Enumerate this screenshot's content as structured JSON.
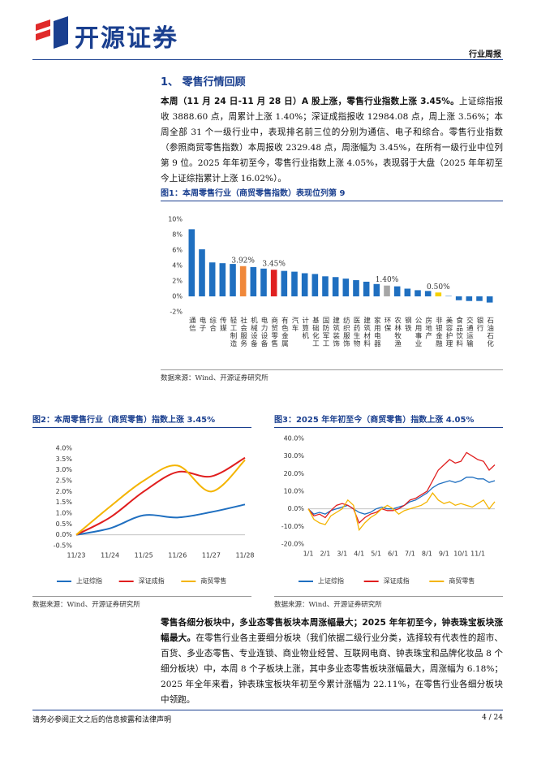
{
  "header": {
    "logo": "开源证券",
    "report_type": "行业周报"
  },
  "section_title": "1、 零售行情回顾",
  "paragraphs": [
    {
      "lead": "本周（11 月 24 日-11 月 28 日）A 股上涨，零售行业指数上涨 3.45%。",
      "text": "上证综指报收 3888.60 点，周累计上涨 1.40%；深证成指报收 12984.08 点，周上涨 3.56%；本周全部 31 个一级行业中，表现排名前三位的分别为通信、电子和综合。零售行业指数（参照商贸零售指数）本周报收 2329.48 点，周涨幅为 3.45%，在所有一级行业中位列第 9 位。2025 年年初至今，零售行业指数上涨 4.05%，表现弱于大盘（2025 年年初至今上证综指累计上涨 16.02%）。"
    },
    {
      "lead": "零售各细分板块中，多业态零售板块本周涨幅最大；2025 年年初至今，钟表珠宝板块涨幅最大。",
      "text": "在零售行业各主要细分板块（我们依据二级行业分类，选择较有代表性的超市、百货、多业态零售、专业连锁、商业物业经营、互联网电商、钟表珠宝和品牌化妆品 8 个细分板块）中，本周 8 个子板块上涨，其中多业态零售板块涨幅最大，周涨幅为 6.18%；2025 年全年来看，钟表珠宝板块年初至今累计涨幅为 22.11%，在零售行业各细分板块中领跑。"
    }
  ],
  "chart_data": [
    {
      "type": "bar",
      "title": "图1：本周零售行业（商贸零售指数）表现位列第 9",
      "source": "数据来源：Wind、开源证券研究所",
      "categories": [
        "通信",
        "电子",
        "综合",
        "传媒",
        "轻工制造",
        "社会服务",
        "机械设备",
        "电力设备",
        "商贸零售",
        "有色金属",
        "汽车",
        "计算机",
        "基础化工",
        "国防军工",
        "建筑装饰",
        "纺织服饰",
        "医药生物",
        "建筑材料",
        "家用电器",
        "环保",
        "农林牧渔",
        "钢铁",
        "公用事业",
        "房地产",
        "非银金融",
        "美容护理",
        "食品饮料",
        "交通运输",
        "银行",
        "石油石化"
      ],
      "values": [
        8.7,
        6.1,
        4.4,
        4.3,
        4.2,
        3.92,
        3.8,
        3.6,
        3.45,
        3.3,
        3.2,
        3.0,
        2.9,
        2.6,
        2.5,
        2.3,
        2.1,
        1.9,
        1.6,
        1.4,
        1.3,
        1.0,
        0.8,
        0.7,
        0.5,
        0.05,
        -0.5,
        -0.6,
        -0.6,
        -0.8
      ],
      "value_labels": [
        null,
        null,
        null,
        null,
        null,
        "3.92%",
        null,
        null,
        "3.45%",
        null,
        null,
        null,
        null,
        null,
        null,
        null,
        null,
        null,
        null,
        "1.40%",
        null,
        null,
        null,
        null,
        "0.50%",
        null,
        null,
        null,
        null,
        null
      ],
      "colors": [
        "#1f6fc0",
        "#1f6fc0",
        "#1f6fc0",
        "#1f6fc0",
        "#1f6fc0",
        "#f0883a",
        "#1f6fc0",
        "#1f6fc0",
        "#e02020",
        "#1f6fc0",
        "#1f6fc0",
        "#1f6fc0",
        "#1f6fc0",
        "#1f6fc0",
        "#1f6fc0",
        "#1f6fc0",
        "#1f6fc0",
        "#1f6fc0",
        "#1f6fc0",
        "#a6a6a6",
        "#1f6fc0",
        "#1f6fc0",
        "#1f6fc0",
        "#1f6fc0",
        "#f5d000",
        "#1f6fc0",
        "#1f6fc0",
        "#1f6fc0",
        "#1f6fc0",
        "#1f6fc0"
      ],
      "ylim": [
        -2,
        10
      ],
      "yticks": [
        {
          "value": -2,
          "label": "-2%"
        },
        {
          "value": 0,
          "label": "0%"
        },
        {
          "value": 2,
          "label": "2%"
        },
        {
          "value": 4,
          "label": "4%"
        },
        {
          "value": 6,
          "label": "6%"
        },
        {
          "value": 8,
          "label": "8%"
        },
        {
          "value": 10,
          "label": "10%"
        }
      ]
    },
    {
      "type": "line",
      "smooth": true,
      "title": "图2：本周零售行业（商贸零售）指数上涨 3.45%",
      "source": "数据来源：Wind、开源证券研究所",
      "categories": [
        "11/23",
        "11/24",
        "11/25",
        "11/26",
        "11/27",
        "11/28"
      ],
      "series": [
        {
          "name": "上证综指",
          "color": "#1f6fc0",
          "values": [
            0,
            0.3,
            0.9,
            0.8,
            1.05,
            1.4
          ]
        },
        {
          "name": "深证成指",
          "color": "#e01e1e",
          "values": [
            0,
            0.8,
            2.0,
            2.9,
            2.7,
            3.56
          ]
        },
        {
          "name": "商贸零售",
          "color": "#f4b400",
          "values": [
            0,
            1.3,
            2.5,
            3.2,
            2.0,
            3.45
          ]
        }
      ],
      "ylim": [
        -0.5,
        4.0
      ],
      "yticks": [
        {
          "value": -0.5,
          "label": "-0.5%"
        },
        {
          "value": 0,
          "label": "0.0%"
        },
        {
          "value": 0.5,
          "label": "0.5%"
        },
        {
          "value": 1,
          "label": "1.0%"
        },
        {
          "value": 1.5,
          "label": "1.5%"
        },
        {
          "value": 2,
          "label": "2.0%"
        },
        {
          "value": 2.5,
          "label": "2.5%"
        },
        {
          "value": 3,
          "label": "3.0%"
        },
        {
          "value": 3.5,
          "label": "3.5%"
        },
        {
          "value": 4,
          "label": "4.0%"
        }
      ]
    },
    {
      "type": "line",
      "smooth": false,
      "title": "图3：2025 年年初至今（商贸零售）指数上涨 4.05%",
      "source": "数据来源：Wind、开源证券研究所",
      "categories": [
        "1/1",
        null,
        null,
        "2/1",
        null,
        null,
        "3/1",
        null,
        null,
        "4/1",
        null,
        null,
        "5/1",
        null,
        null,
        "6/1",
        null,
        null,
        "7/1",
        null,
        null,
        "8/1",
        null,
        null,
        "9/1",
        null,
        null,
        "10/1",
        null,
        null,
        "11/1",
        null,
        null,
        null
      ],
      "series": [
        {
          "name": "上证综指",
          "color": "#1f6fc0",
          "values": [
            0,
            -3,
            -2,
            -3,
            -1,
            0,
            1,
            2,
            0,
            -2,
            -3,
            -2,
            0,
            1,
            0,
            0,
            1,
            2,
            4,
            5,
            7,
            9,
            12,
            14,
            15,
            16,
            15,
            16,
            18,
            18,
            17,
            17,
            15,
            16
          ]
        },
        {
          "name": "深证成指",
          "color": "#e01e1e",
          "values": [
            0,
            -4,
            -3,
            -5,
            -1,
            2,
            3,
            2,
            0,
            -8,
            -5,
            -3,
            -2,
            0,
            -1,
            -1,
            0,
            2,
            5,
            6,
            8,
            10,
            16,
            22,
            25,
            28,
            26,
            27,
            32,
            30,
            28,
            27,
            22,
            25
          ]
        },
        {
          "name": "商贸零售",
          "color": "#f4b400",
          "values": [
            0,
            -6,
            -8,
            -9,
            -4,
            -2,
            0,
            5,
            2,
            -12,
            -8,
            -5,
            -3,
            0,
            2,
            0,
            -3,
            -1,
            0,
            1,
            2,
            4,
            9,
            5,
            3,
            4,
            2,
            3,
            2,
            1,
            3,
            5,
            0,
            4.05
          ]
        }
      ],
      "ylim": [
        -20,
        40
      ],
      "yticks": [
        {
          "value": -20,
          "label": "-20.0%"
        },
        {
          "value": -10,
          "label": "-10.0%"
        },
        {
          "value": 0,
          "label": "0.0%"
        },
        {
          "value": 10,
          "label": "10.0%"
        },
        {
          "value": 20,
          "label": "20.0%"
        },
        {
          "value": 30,
          "label": "30.0%"
        },
        {
          "value": 40,
          "label": "40.0%"
        }
      ]
    }
  ],
  "footer": {
    "disclaimer": "请务必参阅正文之后的信息披露和法律声明",
    "page": "4 / 24"
  }
}
